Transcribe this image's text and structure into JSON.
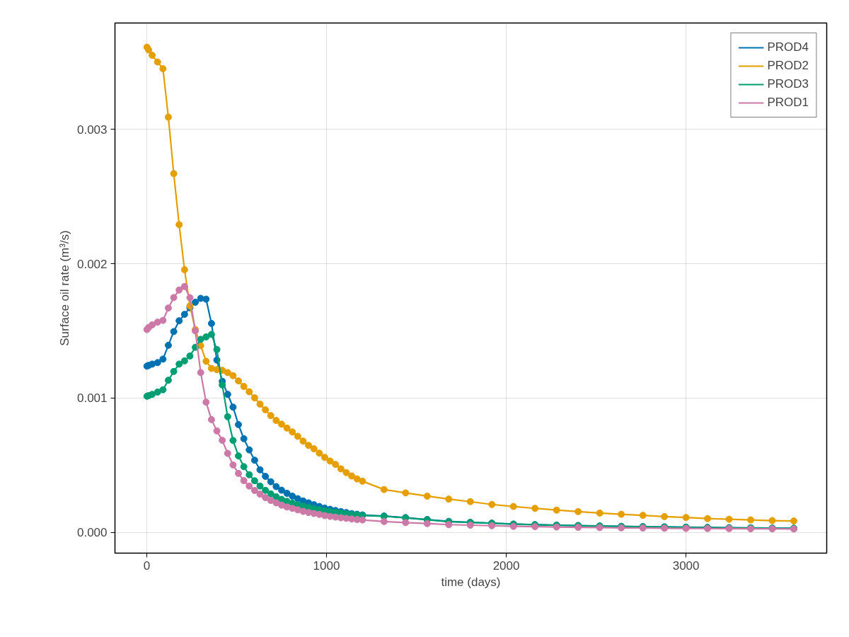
{
  "chart_data": {
    "type": "line",
    "xlabel": "time (days)",
    "ylabel": "Surface oil rate (m³/s)",
    "x": [
      1,
      10,
      30,
      60,
      90,
      120,
      150,
      180,
      210,
      240,
      270,
      300,
      330,
      360,
      390,
      420,
      450,
      480,
      510,
      540,
      570,
      600,
      630,
      660,
      690,
      720,
      750,
      780,
      810,
      840,
      870,
      900,
      930,
      960,
      990,
      1020,
      1050,
      1080,
      1110,
      1140,
      1170,
      1200,
      1320,
      1440,
      1560,
      1680,
      1800,
      1920,
      2040,
      2160,
      2280,
      2400,
      2520,
      2640,
      2760,
      2880,
      3000,
      3120,
      3240,
      3360,
      3480,
      3600
    ],
    "series": [
      {
        "name": "PROD4",
        "color": "#0072b2",
        "values": [
          0.001238,
          0.001243,
          0.001253,
          0.001264,
          0.00129,
          0.001393,
          0.001495,
          0.001575,
          0.001623,
          0.001672,
          0.001713,
          0.001742,
          0.001736,
          0.001555,
          0.001283,
          0.001125,
          0.001028,
          0.000933,
          0.000803,
          0.000698,
          0.000615,
          0.000538,
          0.000467,
          0.000418,
          0.000378,
          0.000342,
          0.000315,
          0.000292,
          0.000271,
          0.000252,
          0.000235,
          0.000221,
          0.000207,
          0.000194,
          0.000182,
          0.000173,
          0.000164,
          0.000156,
          0.000149,
          0.000141,
          0.000136,
          0.000131,
          0.000123,
          0.000111,
          9.7e-05,
          8.3e-05,
          7.6e-05,
          7e-05,
          6.3e-05,
          5.9e-05,
          5.5e-05,
          5.2e-05,
          4.9e-05,
          4.6e-05,
          4.4e-05,
          4.2e-05,
          4e-05,
          3.8e-05,
          3.6e-05,
          3.5e-05,
          3.3e-05,
          3.2e-05
        ]
      },
      {
        "name": "PROD2",
        "color": "#e69f00",
        "values": [
          0.00361,
          0.00359,
          0.00355,
          0.0035,
          0.00345,
          0.00309,
          0.00267,
          0.00229,
          0.001955,
          0.001686,
          0.00151,
          0.00139,
          0.001274,
          0.001221,
          0.001212,
          0.001207,
          0.00119,
          0.001167,
          0.001128,
          0.001087,
          0.001047,
          0.001002,
          0.000955,
          0.000913,
          0.00087,
          0.000834,
          0.000806,
          0.000777,
          0.000748,
          0.000716,
          0.00068,
          0.000648,
          0.000623,
          0.000591,
          0.000559,
          0.000532,
          0.000507,
          0.000474,
          0.000446,
          0.000421,
          0.000399,
          0.000382,
          0.00032,
          0.000295,
          0.000271,
          0.000249,
          0.00023,
          0.000209,
          0.000194,
          0.00018,
          0.000167,
          0.000156,
          0.000145,
          0.000136,
          0.000128,
          0.000119,
          0.000112,
          0.000104,
          9.9e-05,
          9.4e-05,
          8.9e-05,
          8.6e-05
        ]
      },
      {
        "name": "PROD3",
        "color": "#009e73",
        "values": [
          0.001014,
          0.001018,
          0.001028,
          0.001045,
          0.001062,
          0.001133,
          0.001198,
          0.001253,
          0.001277,
          0.001313,
          0.001378,
          0.001437,
          0.001455,
          0.001474,
          0.001361,
          0.001098,
          0.000862,
          0.000685,
          0.00057,
          0.00049,
          0.00043,
          0.000385,
          0.000346,
          0.000314,
          0.000288,
          0.000266,
          0.000247,
          0.000232,
          0.000219,
          0.000207,
          0.000197,
          0.000188,
          0.000179,
          0.000171,
          0.000163,
          0.000157,
          0.000151,
          0.000146,
          0.000141,
          0.000135,
          0.000131,
          0.000127,
          0.000121,
          0.000109,
          9.5e-05,
          8.1e-05,
          7.5e-05,
          6.9e-05,
          6.2e-05,
          5.8e-05,
          5.4e-05,
          5.1e-05,
          4.8e-05,
          4.5e-05,
          4.3e-05,
          4.1e-05,
          3.9e-05,
          3.7e-05,
          3.5e-05,
          3.4e-05,
          3.2e-05,
          3.1e-05
        ]
      },
      {
        "name": "PROD1",
        "color": "#cc79a7",
        "values": [
          0.00151,
          0.001525,
          0.001545,
          0.001565,
          0.001578,
          0.00167,
          0.001748,
          0.001804,
          0.00183,
          0.001747,
          0.0015,
          0.00119,
          0.00097,
          0.00084,
          0.000756,
          0.000686,
          0.000589,
          0.000503,
          0.00044,
          0.000386,
          0.000346,
          0.000313,
          0.000286,
          0.00026,
          0.000239,
          0.000221,
          0.000204,
          0.00019,
          0.00018,
          0.000169,
          0.000157,
          0.000149,
          0.000142,
          0.000135,
          0.000126,
          0.00012,
          0.000115,
          0.00011,
          0.000106,
          0.000101,
          9.7e-05,
          9.4e-05,
          8.2e-05,
          7.4e-05,
          6.7e-05,
          5.9e-05,
          5.5e-05,
          5.1e-05,
          4.6e-05,
          4.4e-05,
          4.1e-05,
          3.9e-05,
          3.7e-05,
          3.5e-05,
          3.4e-05,
          3.2e-05,
          3.1e-05,
          3e-05,
          2.9e-05,
          2.8e-05,
          2.8e-05,
          2.7e-05
        ]
      }
    ],
    "xlim": [
      -177,
      3783
    ],
    "ylim": [
      -0.000153,
      0.00379
    ],
    "xticks": [
      0,
      1000,
      2000,
      3000
    ],
    "yticks": [
      {
        "value": 0,
        "label": "0.000"
      },
      {
        "value": 0.001,
        "label": "0.001"
      },
      {
        "value": 0.002,
        "label": "0.002"
      },
      {
        "value": 0.003,
        "label": "0.003"
      }
    ],
    "grid": true,
    "legend": "top right",
    "marker": "circle",
    "line_style": "solid"
  }
}
